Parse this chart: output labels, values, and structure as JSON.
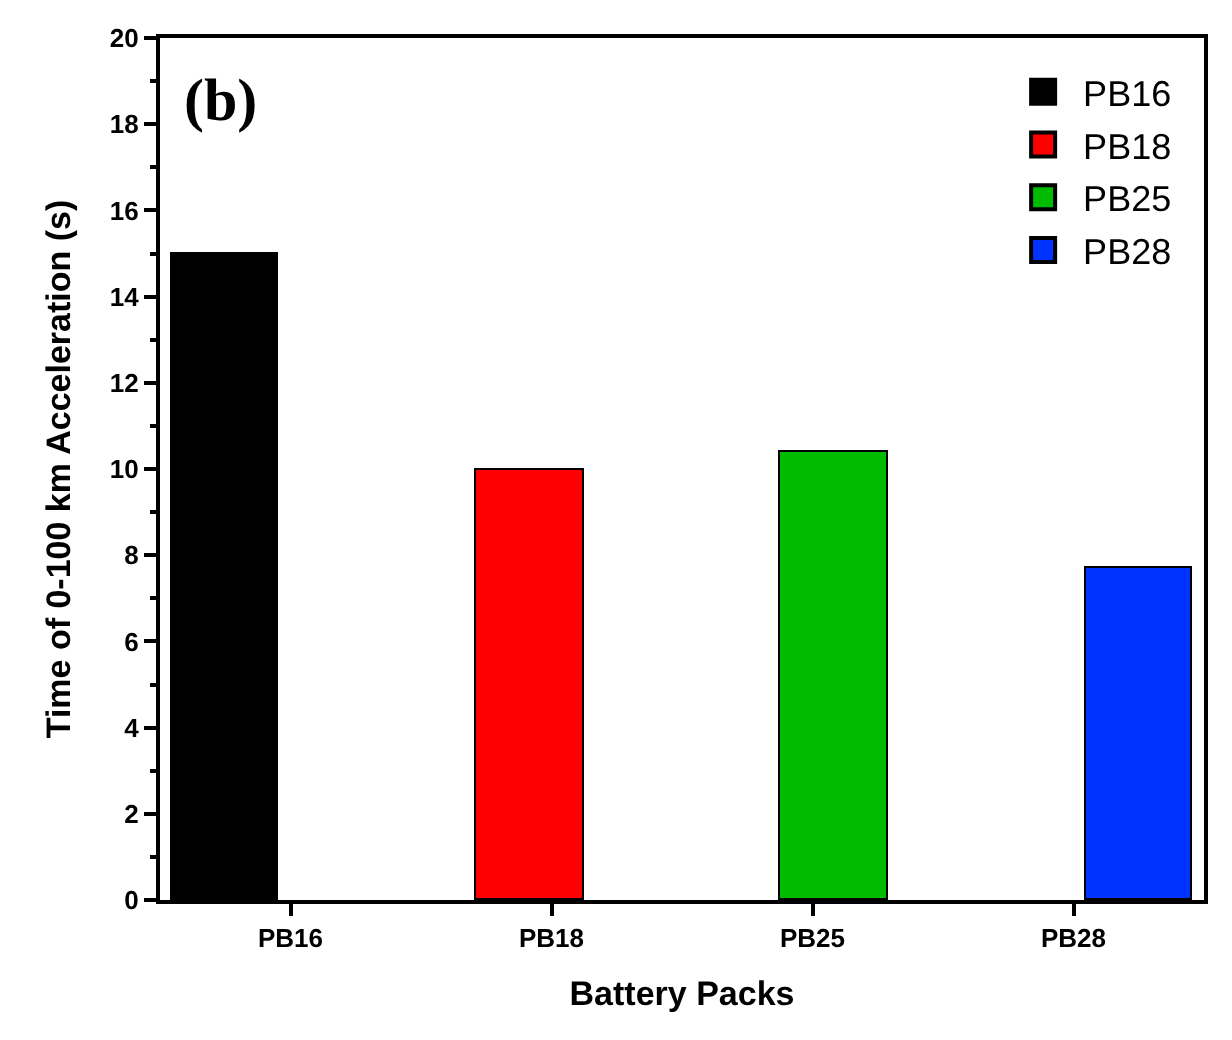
{
  "chart_data": {
    "type": "bar",
    "xlabel": "Battery Packs",
    "ylabel": "Time of 0-100 km Acceleration (s)",
    "annotations": [
      "(b)"
    ],
    "categories": [
      "PB16",
      "PB18",
      "PB25",
      "PB28"
    ],
    "series": [
      {
        "name": "PB16",
        "color": "#000000",
        "values": [
          15,
          null,
          null,
          null
        ]
      },
      {
        "name": "PB18",
        "color": "#ff0000",
        "values": [
          null,
          10,
          null,
          null
        ]
      },
      {
        "name": "PB25",
        "color": "#00bb00",
        "values": [
          null,
          null,
          10.4,
          null
        ]
      },
      {
        "name": "PB28",
        "color": "#0033ff",
        "values": [
          null,
          null,
          null,
          7.7
        ]
      }
    ],
    "ylim": [
      0,
      20
    ],
    "yticks": [
      0,
      2,
      4,
      6,
      8,
      10,
      12,
      14,
      16,
      18,
      20
    ],
    "legend": "top right"
  }
}
